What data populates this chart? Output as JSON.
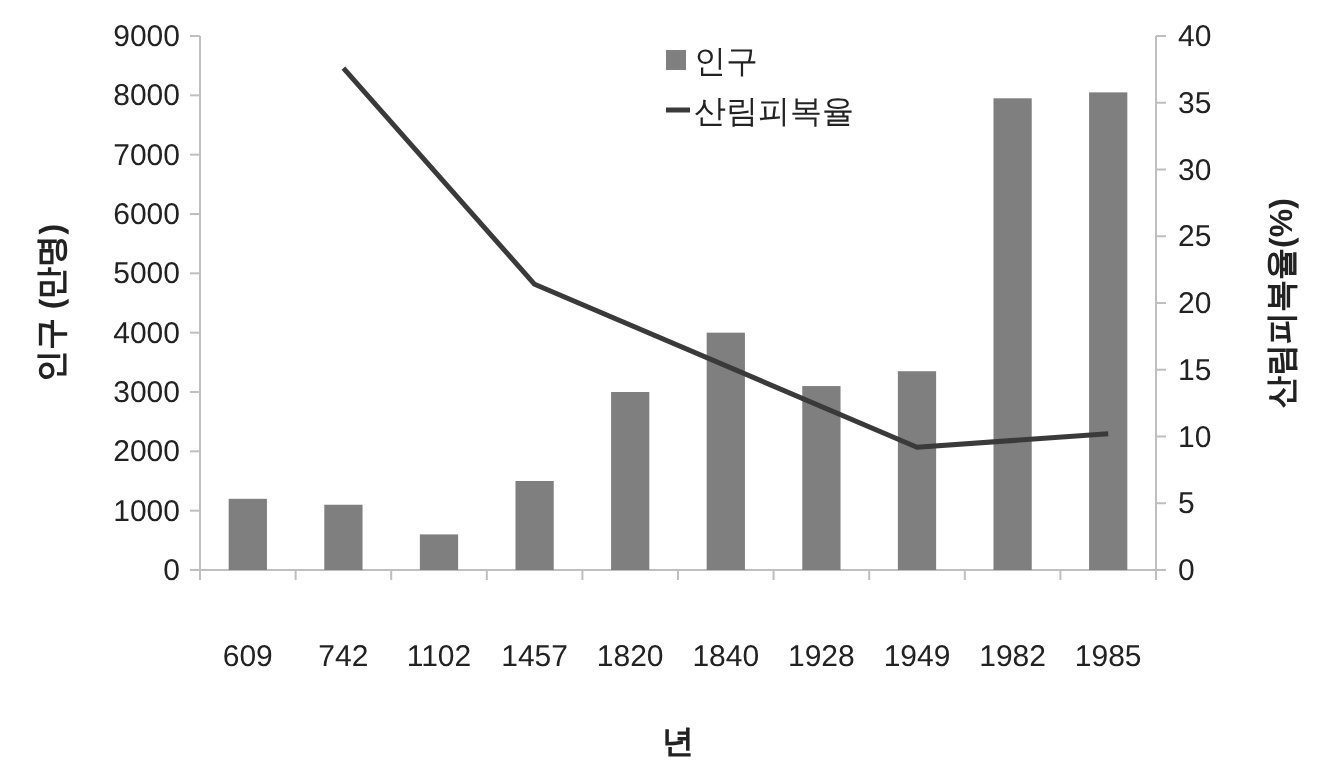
{
  "chart_data": {
    "type": "bar",
    "categories": [
      "609",
      "742",
      "1102",
      "1457",
      "1820",
      "1840",
      "1928",
      "1949",
      "1982",
      "1985"
    ],
    "series": [
      {
        "name": "인구",
        "color": "#7f7f7f",
        "values": [
          1200,
          1100,
          600,
          1500,
          3000,
          4000,
          3100,
          3350,
          7950,
          8050
        ]
      },
      {
        "name": "산림피복율",
        "type": "line",
        "axis": "y2",
        "color": "#3a3a3a",
        "values": [
          null,
          37.6,
          null,
          21.4,
          null,
          null,
          null,
          9.2,
          null,
          10.2
        ]
      }
    ],
    "xlabel": "년",
    "ylabel": "인구 (만명)",
    "y2label": "산림피복율(%)",
    "ylim": [
      0,
      9000
    ],
    "yticks": [
      0,
      1000,
      2000,
      3000,
      4000,
      5000,
      6000,
      7000,
      8000,
      9000
    ],
    "y2lim": [
      0,
      40
    ],
    "y2ticks": [
      0,
      5,
      10,
      15,
      20,
      25,
      30,
      35,
      40
    ],
    "legend": "top",
    "grid": false
  }
}
